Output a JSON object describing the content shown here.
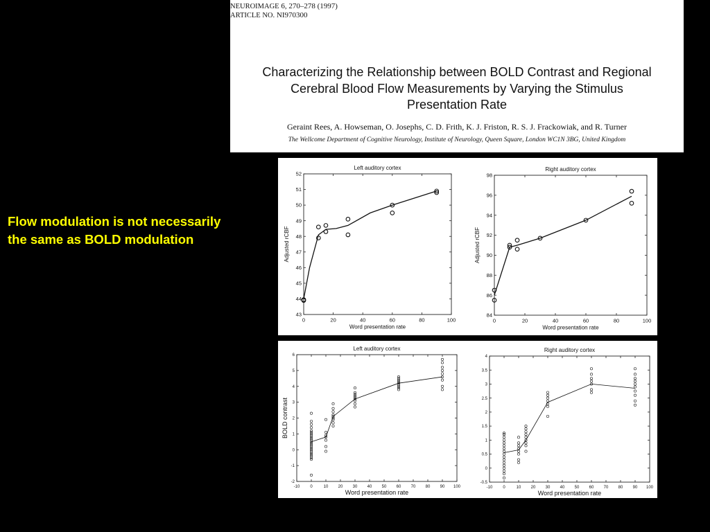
{
  "paper": {
    "journal_name": "NEUROIMAGE",
    "journal_details": "6, 270–278 (1997)",
    "article_label": "ARTICLE NO.",
    "article_id": "NI970300",
    "title_lines": [
      "Characterizing the Relationship between BOLD Contrast and Regional",
      "Cerebral Blood Flow Measurements by Varying the Stimulus",
      "Presentation Rate"
    ],
    "authors": "Geraint Rees, A. Howseman, O. Josephs, C. D. Frith, K. J. Friston, R. S. J. Frackowiak, and R. Turner",
    "affiliation": "The Wellcome Department of Cognitive Neurology, Institute of Neurology, Queen Square, London WC1N 3BG, United Kingdom"
  },
  "slide": {
    "caption_lines": [
      "Flow modulation is not necessarily",
      "the same as BOLD modulation"
    ]
  },
  "chart_data": [
    {
      "type": "scatter",
      "title": "Left auditory cortex",
      "xlabel": "Word presentation rate",
      "ylabel": "Adjusted rCBF",
      "xlim": [
        0,
        100
      ],
      "ylim": [
        43,
        52
      ],
      "xticks": [
        0,
        20,
        40,
        60,
        80,
        100
      ],
      "yticks": [
        43,
        44,
        45,
        46,
        47,
        48,
        49,
        50,
        51,
        52
      ],
      "points": [
        {
          "x": 0,
          "y": 43.95
        },
        {
          "x": 0,
          "y": 43.9
        },
        {
          "x": 10,
          "y": 48.6
        },
        {
          "x": 10,
          "y": 47.9
        },
        {
          "x": 15,
          "y": 48.7
        },
        {
          "x": 15,
          "y": 48.3
        },
        {
          "x": 30,
          "y": 49.1
        },
        {
          "x": 30,
          "y": 48.1
        },
        {
          "x": 60,
          "y": 50.0
        },
        {
          "x": 60,
          "y": 49.5
        },
        {
          "x": 90,
          "y": 50.9
        },
        {
          "x": 90,
          "y": 50.8
        }
      ],
      "fit": [
        {
          "x": 0,
          "y": 44.0
        },
        {
          "x": 4,
          "y": 46.0
        },
        {
          "x": 10,
          "y": 48.1
        },
        {
          "x": 15,
          "y": 48.45
        },
        {
          "x": 22,
          "y": 48.5
        },
        {
          "x": 30,
          "y": 48.7
        },
        {
          "x": 45,
          "y": 49.5
        },
        {
          "x": 60,
          "y": 50.0
        },
        {
          "x": 90,
          "y": 50.9
        }
      ]
    },
    {
      "type": "scatter",
      "title": "Right auditory cortex",
      "xlabel": "Word presentation rate",
      "ylabel": "Adjusted rCBF",
      "xlim": [
        0,
        100
      ],
      "ylim": [
        84,
        98
      ],
      "xticks": [
        0,
        20,
        40,
        60,
        80,
        100
      ],
      "yticks": [
        84,
        86,
        88,
        90,
        92,
        94,
        96,
        98
      ],
      "points": [
        {
          "x": 0,
          "y": 86.5
        },
        {
          "x": 0,
          "y": 85.5
        },
        {
          "x": 10,
          "y": 91.0
        },
        {
          "x": 10,
          "y": 90.8
        },
        {
          "x": 15,
          "y": 91.5
        },
        {
          "x": 15,
          "y": 90.6
        },
        {
          "x": 30,
          "y": 91.7
        },
        {
          "x": 60,
          "y": 93.5
        },
        {
          "x": 90,
          "y": 96.4
        },
        {
          "x": 90,
          "y": 95.2
        }
      ],
      "fit": [
        {
          "x": 0,
          "y": 86.0
        },
        {
          "x": 10,
          "y": 90.8
        },
        {
          "x": 15,
          "y": 91.0
        },
        {
          "x": 30,
          "y": 91.7
        },
        {
          "x": 60,
          "y": 93.5
        },
        {
          "x": 90,
          "y": 95.9
        }
      ]
    },
    {
      "type": "scatter",
      "title": "Left auditory cortex",
      "xlabel": "Word presentation rate",
      "ylabel": "BOLD contrast",
      "xlim": [
        -10,
        100
      ],
      "ylim": [
        -2,
        6
      ],
      "xticks": [
        -10,
        0,
        10,
        20,
        30,
        40,
        50,
        60,
        70,
        80,
        90,
        100
      ],
      "yticks": [
        -2,
        -1,
        0,
        1,
        2,
        3,
        4,
        5,
        6
      ],
      "points_by_x": [
        {
          "x": 0,
          "y": [
            -1.6,
            -0.6,
            -0.5,
            -0.4,
            -0.3,
            -0.2,
            -0.1,
            0,
            0.1,
            0.2,
            0.3,
            0.4,
            0.5,
            0.6,
            0.7,
            0.8,
            0.9,
            1.0,
            1.1,
            1.2,
            1.4,
            1.6,
            1.8,
            2.3
          ]
        },
        {
          "x": 10,
          "y": [
            -0.1,
            0.2,
            0.6,
            0.8,
            0.9,
            1.1,
            1.9
          ]
        },
        {
          "x": 15,
          "y": [
            1.5,
            1.7,
            1.9,
            2.0,
            2.1,
            2.2,
            2.4,
            2.6,
            2.9
          ]
        },
        {
          "x": 30,
          "y": [
            2.7,
            2.9,
            3.1,
            3.2,
            3.3,
            3.4,
            3.5,
            3.6,
            3.9
          ]
        },
        {
          "x": 60,
          "y": [
            3.8,
            3.9,
            4.0,
            4.1,
            4.2,
            4.3,
            4.4,
            4.5,
            4.6
          ]
        },
        {
          "x": 90,
          "y": [
            3.8,
            4.0,
            4.4,
            4.6,
            4.8,
            5.0,
            5.2,
            5.5,
            5.7
          ]
        }
      ],
      "fit": [
        {
          "x": 0,
          "y": 0.5
        },
        {
          "x": 10,
          "y": 0.8
        },
        {
          "x": 15,
          "y": 2.1
        },
        {
          "x": 30,
          "y": 3.2
        },
        {
          "x": 60,
          "y": 4.2
        },
        {
          "x": 90,
          "y": 4.6
        }
      ]
    },
    {
      "type": "scatter",
      "title": "Right auditory cortex",
      "xlabel": "Word presentation rate",
      "ylabel": "",
      "xlim": [
        -10,
        100
      ],
      "ylim": [
        -0.5,
        4
      ],
      "xticks": [
        -10,
        0,
        10,
        20,
        30,
        40,
        50,
        60,
        70,
        80,
        90,
        100
      ],
      "yticks": [
        -0.5,
        0,
        0.5,
        1,
        1.5,
        2,
        2.5,
        3,
        3.5,
        4
      ],
      "ytick_labels": [
        "-0.5",
        "0",
        "0.5",
        "1",
        "1.5",
        "2",
        "2.5",
        "3",
        "3.5",
        "4"
      ],
      "points_by_x": [
        {
          "x": 0,
          "y": [
            -0.35,
            -0.2,
            -0.1,
            0,
            0.1,
            0.2,
            0.3,
            0.4,
            0.5,
            0.6,
            0.7,
            0.8,
            0.9,
            1.0,
            1.1,
            1.2,
            1.25
          ]
        },
        {
          "x": 10,
          "y": [
            0.2,
            0.3,
            0.5,
            0.6,
            0.7,
            0.8,
            0.9,
            1.1
          ]
        },
        {
          "x": 15,
          "y": [
            0.6,
            0.8,
            0.9,
            1.0,
            1.1,
            1.2,
            1.3,
            1.4,
            1.5
          ]
        },
        {
          "x": 30,
          "y": [
            1.85,
            2.2,
            2.3,
            2.4,
            2.5,
            2.6,
            2.7
          ]
        },
        {
          "x": 60,
          "y": [
            2.7,
            2.8,
            3.0,
            3.1,
            3.2,
            3.35,
            3.55
          ]
        },
        {
          "x": 90,
          "y": [
            2.25,
            2.4,
            2.6,
            2.75,
            2.9,
            3.0,
            3.1,
            3.2,
            3.35,
            3.55
          ]
        }
      ],
      "fit": [
        {
          "x": 0,
          "y": 0.55
        },
        {
          "x": 10,
          "y": 0.65
        },
        {
          "x": 15,
          "y": 1.0
        },
        {
          "x": 30,
          "y": 2.35
        },
        {
          "x": 60,
          "y": 3.0
        },
        {
          "x": 90,
          "y": 2.85
        }
      ]
    }
  ]
}
